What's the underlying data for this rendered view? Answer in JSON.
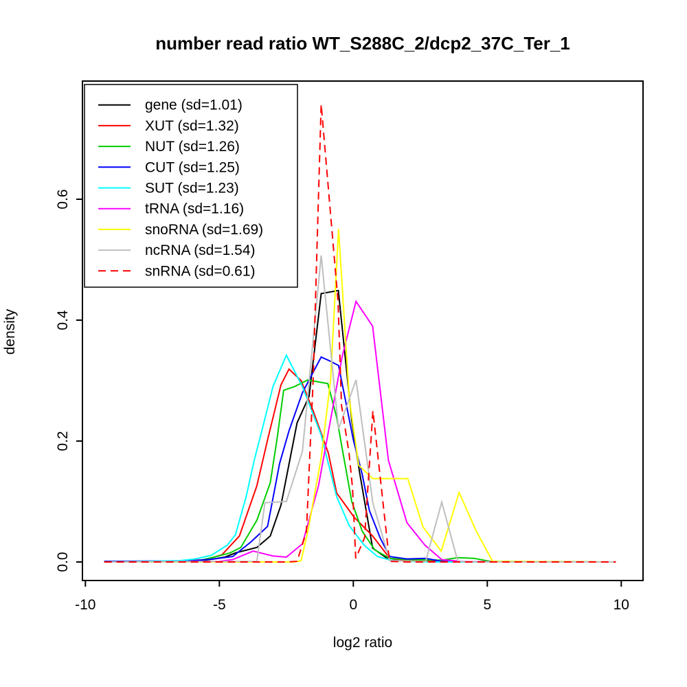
{
  "figure": {
    "background_color": "#ffffff",
    "text_color": "#000000"
  },
  "chart_data": {
    "type": "line",
    "title": "number read ratio WT_S288C_2/dcp2_37C_Ter_1",
    "xlabel": "log2 ratio",
    "ylabel": "density",
    "x_ticks": [
      -10,
      -5,
      0,
      5,
      10
    ],
    "x_tick_labels": [
      "-10",
      "-5",
      "0",
      "5",
      "10"
    ],
    "y_ticks": [
      0.0,
      0.2,
      0.4,
      0.6
    ],
    "y_tick_labels": [
      "0.0",
      "0.2",
      "0.4",
      "0.6"
    ],
    "xlim": [
      -10.1,
      10.8
    ],
    "ylim": [
      -0.031,
      0.795
    ],
    "grid": false,
    "legend_position": "top-left",
    "series": [
      {
        "name": "gene",
        "label": "gene (sd=1.01)",
        "color": "#000000",
        "dash": false,
        "points": [
          [
            -9.3,
            0
          ],
          [
            -7,
            0.001
          ],
          [
            -5.5,
            0.003
          ],
          [
            -4.8,
            0.008
          ],
          [
            -4.4,
            0.015
          ],
          [
            -3.6,
            0.024
          ],
          [
            -3.1,
            0.043
          ],
          [
            -2.7,
            0.094
          ],
          [
            -2.1,
            0.23
          ],
          [
            -1.65,
            0.274
          ],
          [
            -1.2,
            0.444
          ],
          [
            -0.56,
            0.449
          ],
          [
            -0.06,
            0.234
          ],
          [
            0.23,
            0.149
          ],
          [
            0.72,
            0.023
          ],
          [
            1.36,
            0.003
          ],
          [
            2,
            0.002
          ],
          [
            3,
            0.001
          ],
          [
            5,
            0
          ],
          [
            9.8,
            0
          ]
        ]
      },
      {
        "name": "XUT",
        "label": "XUT (sd=1.32)",
        "color": "#ff0000",
        "dash": false,
        "points": [
          [
            -9.3,
            0
          ],
          [
            -6.5,
            0.001
          ],
          [
            -5.5,
            0.004
          ],
          [
            -4.9,
            0.012
          ],
          [
            -4.25,
            0.043
          ],
          [
            -3.6,
            0.126
          ],
          [
            -3.2,
            0.202
          ],
          [
            -2.7,
            0.293
          ],
          [
            -2.4,
            0.319
          ],
          [
            -1.95,
            0.3
          ],
          [
            -1.5,
            0.25
          ],
          [
            -0.93,
            0.18
          ],
          [
            -0.62,
            0.114
          ],
          [
            0.03,
            0.074
          ],
          [
            0.72,
            0.043
          ],
          [
            1.36,
            0.006
          ],
          [
            2,
            0.002
          ],
          [
            3,
            0.001
          ],
          [
            5,
            0
          ],
          [
            9.8,
            0
          ]
        ]
      },
      {
        "name": "NUT",
        "label": "NUT (sd=1.26)",
        "color": "#00cd00",
        "dash": false,
        "points": [
          [
            -9.3,
            0
          ],
          [
            -5.8,
            0.002
          ],
          [
            -5.2,
            0.008
          ],
          [
            -4.6,
            0.015
          ],
          [
            -4.2,
            0.024
          ],
          [
            -3.6,
            0.069
          ],
          [
            -3.1,
            0.131
          ],
          [
            -2.85,
            0.202
          ],
          [
            -2.6,
            0.284
          ],
          [
            -2.2,
            0.29
          ],
          [
            -1.7,
            0.301
          ],
          [
            -0.95,
            0.295
          ],
          [
            -0.62,
            0.239
          ],
          [
            -0.44,
            0.194
          ],
          [
            -0.06,
            0.1
          ],
          [
            0.33,
            0.051
          ],
          [
            0.8,
            0.02
          ],
          [
            1.36,
            0.006
          ],
          [
            2,
            0.004
          ],
          [
            3.3,
            0.003
          ],
          [
            3.9,
            0.007
          ],
          [
            4.5,
            0.006
          ],
          [
            5.1,
            0.001
          ],
          [
            9.8,
            0
          ]
        ]
      },
      {
        "name": "CUT",
        "label": "CUT (sd=1.25)",
        "color": "#0000ff",
        "dash": false,
        "points": [
          [
            -9.3,
            0.001
          ],
          [
            -6,
            0.002
          ],
          [
            -5.2,
            0.005
          ],
          [
            -4.5,
            0.009
          ],
          [
            -3.8,
            0.034
          ],
          [
            -3.2,
            0.059
          ],
          [
            -2.75,
            0.163
          ],
          [
            -2.4,
            0.217
          ],
          [
            -1.9,
            0.28
          ],
          [
            -1.2,
            0.339
          ],
          [
            -0.9,
            0.333
          ],
          [
            -0.55,
            0.325
          ],
          [
            0,
            0.202
          ],
          [
            0.33,
            0.145
          ],
          [
            0.6,
            0.085
          ],
          [
            1,
            0.04
          ],
          [
            1.36,
            0.009
          ],
          [
            2,
            0.005
          ],
          [
            2.7,
            0.006
          ],
          [
            3.3,
            0.001
          ],
          [
            5,
            0
          ],
          [
            9.8,
            0
          ]
        ]
      },
      {
        "name": "SUT",
        "label": "SUT (sd=1.23)",
        "color": "#00ffff",
        "dash": false,
        "points": [
          [
            -9.3,
            0
          ],
          [
            -6.5,
            0.002
          ],
          [
            -5.9,
            0.005
          ],
          [
            -5.3,
            0.011
          ],
          [
            -4.7,
            0.028
          ],
          [
            -4.4,
            0.045
          ],
          [
            -4,
            0.108
          ],
          [
            -3.7,
            0.168
          ],
          [
            -3.35,
            0.228
          ],
          [
            -3,
            0.29
          ],
          [
            -2.5,
            0.342
          ],
          [
            -1.9,
            0.29
          ],
          [
            -1.2,
            0.21
          ],
          [
            -0.62,
            0.108
          ],
          [
            -0.15,
            0.06
          ],
          [
            0.4,
            0.028
          ],
          [
            0.9,
            0.009
          ],
          [
            1.4,
            0.003
          ],
          [
            2,
            0.001
          ],
          [
            3,
            0
          ],
          [
            9.8,
            0
          ]
        ]
      },
      {
        "name": "tRNA",
        "label": "tRNA (sd=1.16)",
        "color": "#ff00ff",
        "dash": false,
        "points": [
          [
            -9.3,
            0
          ],
          [
            -5,
            0.001
          ],
          [
            -4.5,
            0.004
          ],
          [
            -3.74,
            0.018
          ],
          [
            -3,
            0.01
          ],
          [
            -2.5,
            0.008
          ],
          [
            -1.9,
            0.03
          ],
          [
            -1.3,
            0.126
          ],
          [
            -0.42,
            0.339
          ],
          [
            0.1,
            0.431
          ],
          [
            0.72,
            0.39
          ],
          [
            1.31,
            0.168
          ],
          [
            2,
            0.065
          ],
          [
            2.67,
            0.028
          ],
          [
            3.3,
            0.004
          ],
          [
            4,
            0.001
          ],
          [
            5.5,
            0
          ],
          [
            9.8,
            0
          ]
        ]
      },
      {
        "name": "snoRNA",
        "label": "snoRNA (sd=1.69)",
        "color": "#ffff00",
        "dash": false,
        "points": [
          [
            -9.3,
            0
          ],
          [
            -2.2,
            0
          ],
          [
            -1.95,
            0.002
          ],
          [
            -1.7,
            0.05
          ],
          [
            -1.2,
            0.172
          ],
          [
            -0.85,
            0.3
          ],
          [
            -0.55,
            0.551
          ],
          [
            -0.15,
            0.27
          ],
          [
            0.2,
            0.16
          ],
          [
            0.72,
            0.138
          ],
          [
            2.03,
            0.138
          ],
          [
            2.6,
            0.058
          ],
          [
            3.28,
            0.018
          ],
          [
            3.95,
            0.115
          ],
          [
            4.6,
            0.05
          ],
          [
            5.2,
            0.001
          ],
          [
            9.8,
            0
          ]
        ]
      },
      {
        "name": "ncRNA",
        "label": "ncRNA (sd=1.54)",
        "color": "#bebebe",
        "dash": false,
        "points": [
          [
            -9.3,
            0
          ],
          [
            -3.6,
            0.001
          ],
          [
            -3.3,
            0.098
          ],
          [
            -2.5,
            0.1
          ],
          [
            -1.9,
            0.183
          ],
          [
            -1.2,
            0.507
          ],
          [
            -0.55,
            0.22
          ],
          [
            0.1,
            0.301
          ],
          [
            0.73,
            0.097
          ],
          [
            1.36,
            0.002
          ],
          [
            2.7,
            0.001
          ],
          [
            3.3,
            0.099
          ],
          [
            3.9,
            0.001
          ],
          [
            5,
            0
          ],
          [
            9.8,
            0
          ]
        ]
      },
      {
        "name": "snRNA",
        "label": "snRNA (sd=0.61)",
        "color": "#ff0000",
        "dash": true,
        "points": [
          [
            -9.3,
            0
          ],
          [
            -2.5,
            0
          ],
          [
            -2.1,
            0.001
          ],
          [
            -1.75,
            0.05
          ],
          [
            -1.5,
            0.3
          ],
          [
            -1.2,
            0.757
          ],
          [
            -0.57,
            0.43
          ],
          [
            -0.44,
            0.259
          ],
          [
            -0.16,
            0.18
          ],
          [
            -0.03,
            0.123
          ],
          [
            0.09,
            0.006
          ],
          [
            0.42,
            0.04
          ],
          [
            0.73,
            0.25
          ],
          [
            1.35,
            0.001
          ],
          [
            2,
            0
          ],
          [
            9.8,
            0
          ]
        ]
      }
    ]
  }
}
